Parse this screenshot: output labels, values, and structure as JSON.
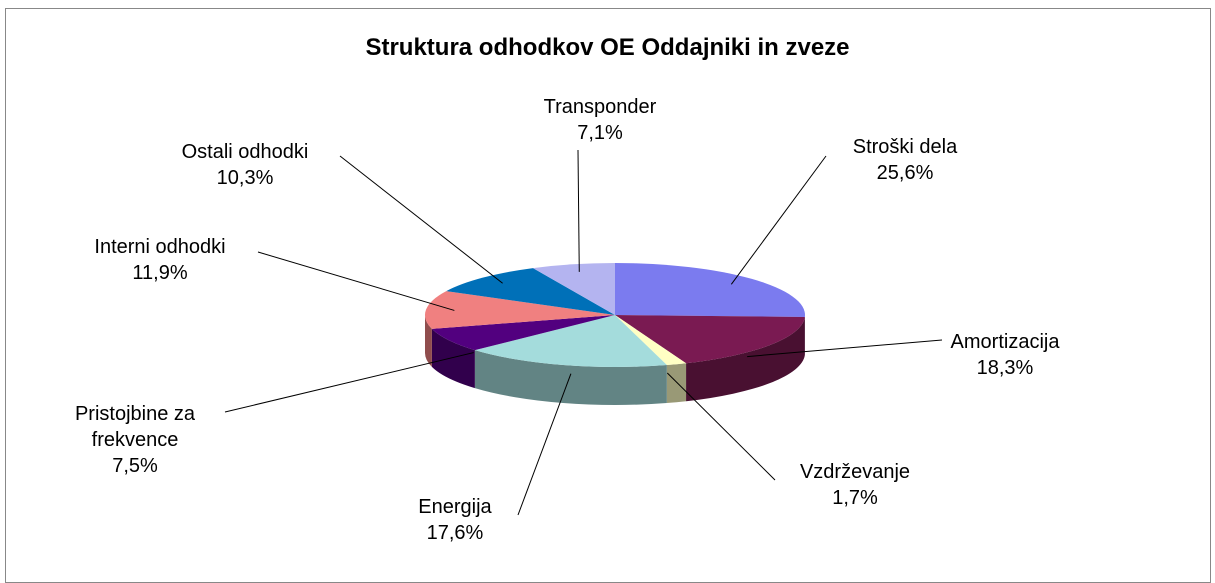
{
  "chart_data": {
    "type": "pie",
    "title": "Struktura odhodkov OE Oddajniki in zveze",
    "categories": [
      "Stroški dela",
      "Amortizacija",
      "Vzdrževanje",
      "Energija",
      "Pristojbine za frekvence",
      "Interni odhodki",
      "Ostali odhodki",
      "Transponder"
    ],
    "values": [
      25.6,
      18.3,
      1.7,
      17.6,
      7.5,
      11.9,
      10.3,
      7.1
    ],
    "value_labels": [
      "25,6%",
      "18,3%",
      "1,7%",
      "17,6%",
      "7,5%",
      "11,9%",
      "10,3%",
      "7,1%"
    ],
    "colors": [
      "#7b7bef",
      "#7a1a52",
      "#ffffc4",
      "#a4dcdc",
      "#52007f",
      "#f08080",
      "#0070b8",
      "#b4b4f0"
    ]
  }
}
